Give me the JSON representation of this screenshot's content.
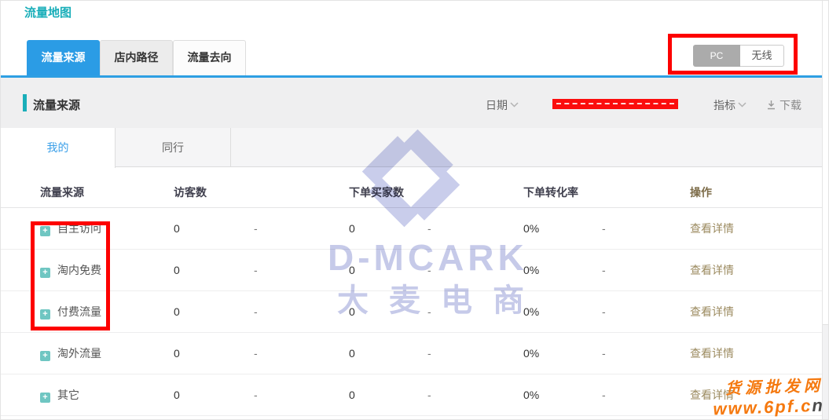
{
  "page": {
    "title": "流量地图"
  },
  "tabs": [
    {
      "label": "流量来源",
      "active": true
    },
    {
      "label": "店内路径",
      "active": false
    },
    {
      "label": "流量去向",
      "active": false
    }
  ],
  "device_toggle": {
    "pc_label": "PC",
    "wireless_label": "无线",
    "selected": "PC"
  },
  "section": {
    "title": "流量来源",
    "date_label": "日期",
    "metric_label": "指标",
    "download_label": "下载"
  },
  "subtabs": [
    {
      "label": "我的",
      "active": true
    },
    {
      "label": "同行",
      "active": false
    }
  ],
  "table": {
    "headers": [
      "流量来源",
      "访客数",
      "",
      "下单买家数",
      "",
      "下单转化率",
      "",
      "操作"
    ],
    "rows": [
      {
        "source": "自主访问",
        "expand_icon": "+",
        "visitors": "0",
        "dash1": "-",
        "buyers": "0",
        "dash2": "-",
        "conversion": "0%",
        "dash3": "-",
        "action": "查看详情"
      },
      {
        "source": "淘内免费",
        "expand_icon": "+",
        "visitors": "0",
        "dash1": "-",
        "buyers": "0",
        "dash2": "-",
        "conversion": "0%",
        "dash3": "-",
        "action": "查看详情"
      },
      {
        "source": "付费流量",
        "expand_icon": "+",
        "visitors": "0",
        "dash1": "-",
        "buyers": "0",
        "dash2": "-",
        "conversion": "0%",
        "dash3": "-",
        "action": "查看详情"
      },
      {
        "source": "淘外流量",
        "expand_icon": "+",
        "visitors": "0",
        "dash1": "-",
        "buyers": "0",
        "dash2": "-",
        "conversion": "0%",
        "dash3": "-",
        "action": "查看详情"
      },
      {
        "source": "其它",
        "expand_icon": "+",
        "visitors": "0",
        "dash1": "-",
        "buyers": "0",
        "dash2": "-",
        "conversion": "0%",
        "dash3": "-",
        "action": "查看详情"
      }
    ]
  },
  "watermark": {
    "brand": "D-MCARK",
    "brand_cn": "大麦电商"
  },
  "corner_watermark": {
    "line1": "货源批发网",
    "line2_main": "www.6pf.c",
    "line2_tail": "n"
  },
  "colors": {
    "title_teal": "#19aeb9",
    "tab_blue": "#2b9ce5",
    "annotation_red": "#fd0100",
    "link_tan": "#9c8b60",
    "watermark_lavender": "#c6cae9",
    "corner_orange": "#f5790f",
    "toggle_gray": "#ababab"
  }
}
